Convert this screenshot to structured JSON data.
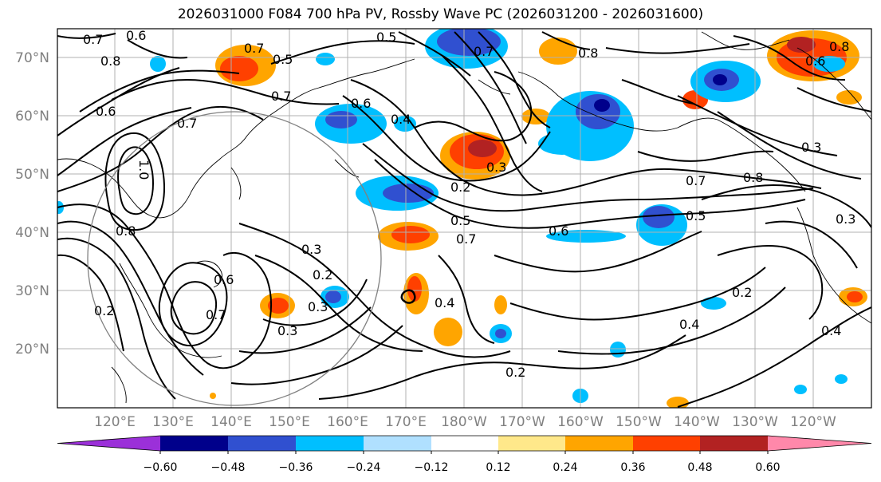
{
  "title": "2026031000 F084 700 hPa PV, Rossby Wave PC (2026031200 - 2026031600)",
  "lat_labels": [
    "70°N",
    "60°N",
    "50°N",
    "40°N",
    "30°N",
    "20°N"
  ],
  "lon_labels": [
    "120°E",
    "130°E",
    "140°E",
    "150°E",
    "160°E",
    "170°E",
    "180°W",
    "170°W",
    "160°W",
    "150°W",
    "140°W",
    "130°W",
    "120°W"
  ],
  "colorbar": {
    "tick_labels": [
      "−0.60",
      "−0.48",
      "−0.36",
      "−0.24",
      "−0.12",
      "0.12",
      "0.24",
      "0.36",
      "0.48",
      "0.60"
    ],
    "colors": [
      "#9b30d9",
      "#00008b",
      "#3050d0",
      "#00bfff",
      "#b0e0ff",
      "#ffffff",
      "#ffe88a",
      "#ffa500",
      "#ff4000",
      "#b22222",
      "#ff88aa"
    ]
  },
  "contour_labels": [
    "0.7",
    "0.6",
    "0.8",
    "0.5",
    "0.7",
    "0.5",
    "0.7",
    "0.8",
    "0.6",
    "0.7",
    "0.6",
    "0.6",
    "0.7",
    "1.0",
    "0.8",
    "0.4",
    "0.2",
    "0.3",
    "0.5",
    "0.7",
    "0.6",
    "0.7",
    "0.8",
    "0.5",
    "0.3",
    "0.3",
    "0.2",
    "0.3",
    "0.3",
    "0.6",
    "0.7",
    "0.2",
    "0.4",
    "0.2",
    "0.4",
    "0.2",
    "0.4",
    "0.3",
    "0.8"
  ]
}
